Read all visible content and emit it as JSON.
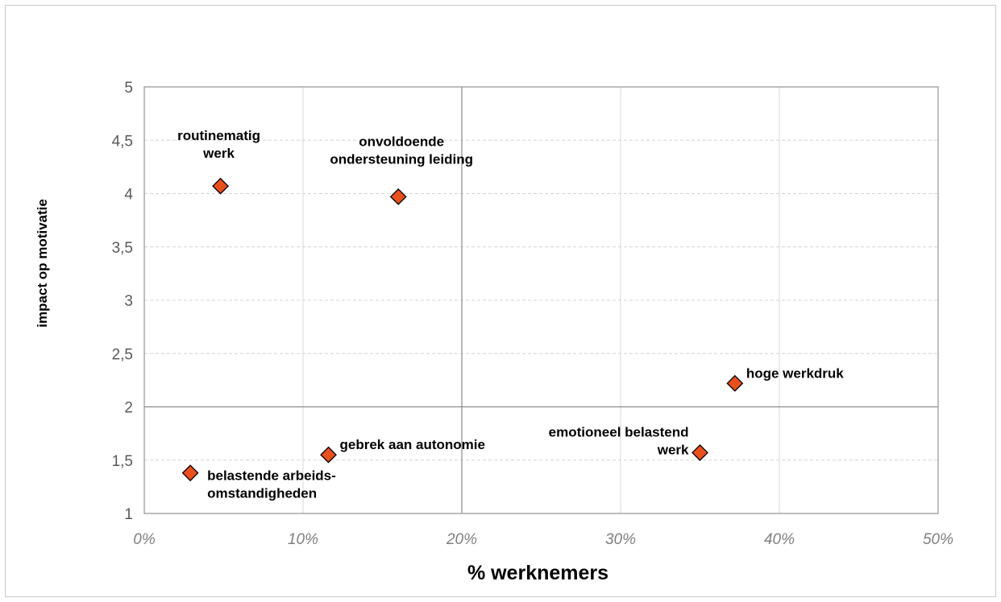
{
  "chart_data": {
    "type": "scatter",
    "title": "",
    "xlabel": "% werknemers",
    "ylabel": "impact op motivatie",
    "xlim": [
      0,
      0.5
    ],
    "ylim": [
      1,
      5
    ],
    "x_ticks": [
      "0%",
      "10%",
      "20%",
      "30%",
      "40%",
      "50%"
    ],
    "y_ticks": [
      "1",
      "1,5",
      "2",
      "2,5",
      "3",
      "3,5",
      "4",
      "4,5",
      "5"
    ],
    "grid": true,
    "reference_lines": {
      "x": 0.2,
      "y": 2
    },
    "marker": {
      "shape": "diamond",
      "color": "#e8501c",
      "edge_color": "#000000"
    },
    "points": [
      {
        "label": [
          "routinematig",
          "werk"
        ],
        "x": 0.048,
        "y": 4.07
      },
      {
        "label": [
          "onvoldoende",
          "ondersteuning leiding"
        ],
        "x": 0.16,
        "y": 3.97
      },
      {
        "label": [
          "hoge werkdruk"
        ],
        "x": 0.372,
        "y": 2.22
      },
      {
        "label": [
          "emotioneel belastend",
          "werk"
        ],
        "x": 0.35,
        "y": 1.57
      },
      {
        "label": [
          "gebrek aan autonomie"
        ],
        "x": 0.116,
        "y": 1.55
      },
      {
        "label": [
          "belastende arbeids-",
          "omstandigheden"
        ],
        "x": 0.029,
        "y": 1.38
      }
    ]
  }
}
